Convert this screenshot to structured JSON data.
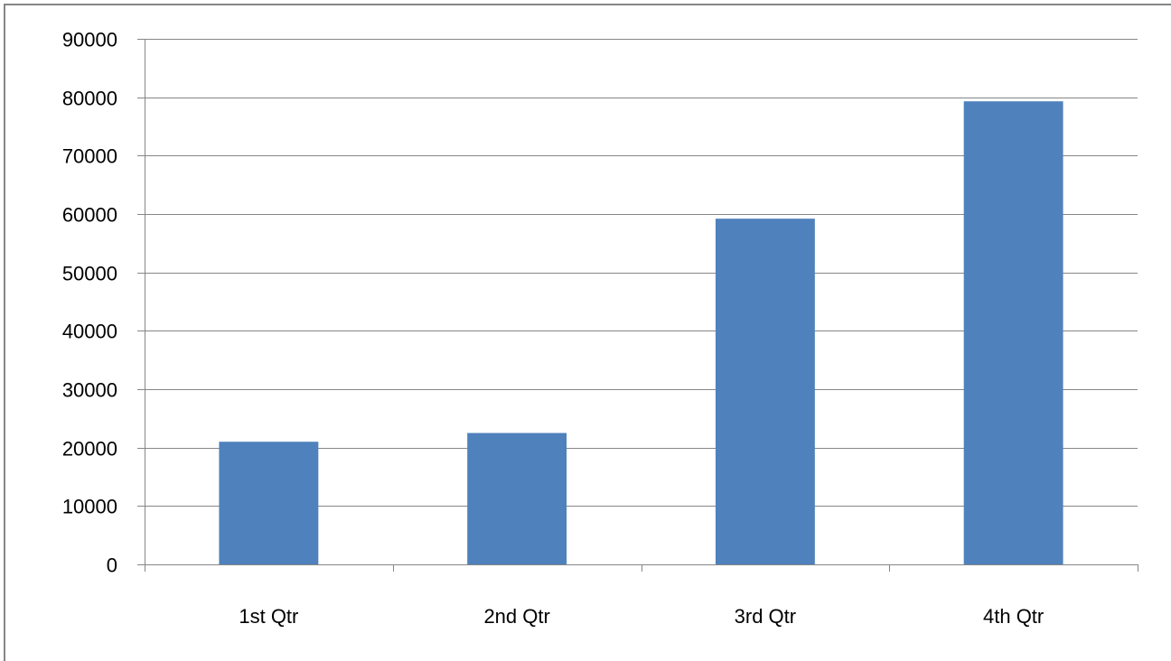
{
  "chart_data": {
    "type": "bar",
    "categories": [
      "1st Qtr",
      "2nd Qtr",
      "3rd Qtr",
      "4th Qtr"
    ],
    "values": [
      21000,
      22500,
      59200,
      79300
    ],
    "title": "",
    "xlabel": "",
    "ylabel": "",
    "ylim": [
      0,
      90000
    ],
    "yticks": [
      "0",
      "10000",
      "20000",
      "30000",
      "40000",
      "50000",
      "60000",
      "70000",
      "80000",
      "90000"
    ],
    "grid": true,
    "legend": "none",
    "colors": {
      "bar": "#4f81bd",
      "grid": "#868686",
      "axis": "#868686",
      "frame": "#868686"
    }
  }
}
